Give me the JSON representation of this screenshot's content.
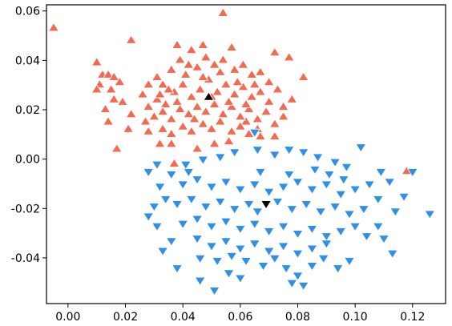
{
  "chart_data": {
    "type": "scatter",
    "title": "",
    "xlabel": "",
    "ylabel": "",
    "xlim": [
      -0.0075,
      0.1315
    ],
    "ylim": [
      -0.0585,
      0.0625
    ],
    "xticks": [
      0.0,
      0.02,
      0.04,
      0.06,
      0.08,
      0.1,
      0.12
    ],
    "xtick_labels": [
      "0.00",
      "0.02",
      "0.04",
      "0.06",
      "0.08",
      "0.10",
      "0.12"
    ],
    "yticks": [
      -0.04,
      -0.02,
      0.0,
      0.02,
      0.04,
      0.06
    ],
    "ytick_labels": [
      "-0.04",
      "-0.02",
      "0.00",
      "0.02",
      "0.04",
      "0.06"
    ],
    "grid": false,
    "legend": "none",
    "series": [
      {
        "marker": "triangle-up",
        "color": "#f26b50",
        "center": [
          0.045,
          0.022
        ],
        "points": [
          [
            -0.005,
            0.053
          ],
          [
            0.022,
            0.048
          ],
          [
            0.054,
            0.059
          ],
          [
            0.038,
            0.046
          ],
          [
            0.043,
            0.044
          ],
          [
            0.047,
            0.046
          ],
          [
            0.057,
            0.045
          ],
          [
            0.072,
            0.043
          ],
          [
            0.077,
            0.041
          ],
          [
            0.082,
            0.033
          ],
          [
            0.01,
            0.039
          ],
          [
            0.012,
            0.034
          ],
          [
            0.014,
            0.034
          ],
          [
            0.011,
            0.03
          ],
          [
            0.01,
            0.028
          ],
          [
            0.016,
            0.033
          ],
          [
            0.018,
            0.031
          ],
          [
            0.015,
            0.028
          ],
          [
            0.016,
            0.024
          ],
          [
            0.019,
            0.023
          ],
          [
            0.013,
            0.02
          ],
          [
            0.014,
            0.015
          ],
          [
            0.017,
            0.004
          ],
          [
            0.022,
            0.018
          ],
          [
            0.021,
            0.012
          ],
          [
            0.028,
            0.011
          ],
          [
            0.032,
            0.006
          ],
          [
            0.036,
            0.006
          ],
          [
            0.045,
            0.004
          ],
          [
            0.051,
            0.006
          ],
          [
            0.067,
            0.009
          ],
          [
            0.072,
            0.009
          ],
          [
            0.037,
            -0.002
          ],
          [
            0.056,
            0.007
          ],
          [
            0.062,
            0.015
          ],
          [
            0.075,
            0.017
          ],
          [
            0.078,
            0.024
          ],
          [
            0.118,
            -0.005
          ],
          [
            0.026,
            0.026
          ],
          [
            0.028,
            0.03
          ],
          [
            0.031,
            0.033
          ],
          [
            0.033,
            0.03
          ],
          [
            0.036,
            0.036
          ],
          [
            0.039,
            0.04
          ],
          [
            0.042,
            0.038
          ],
          [
            0.045,
            0.037
          ],
          [
            0.048,
            0.041
          ],
          [
            0.051,
            0.038
          ],
          [
            0.054,
            0.04
          ],
          [
            0.058,
            0.036
          ],
          [
            0.061,
            0.038
          ],
          [
            0.064,
            0.034
          ],
          [
            0.067,
            0.035
          ],
          [
            0.07,
            0.031
          ],
          [
            0.073,
            0.028
          ],
          [
            0.028,
            0.021
          ],
          [
            0.031,
            0.024
          ],
          [
            0.034,
            0.022
          ],
          [
            0.037,
            0.027
          ],
          [
            0.04,
            0.03
          ],
          [
            0.043,
            0.025
          ],
          [
            0.046,
            0.028
          ],
          [
            0.049,
            0.032
          ],
          [
            0.052,
            0.027
          ],
          [
            0.055,
            0.03
          ],
          [
            0.058,
            0.026
          ],
          [
            0.061,
            0.029
          ],
          [
            0.064,
            0.025
          ],
          [
            0.067,
            0.027
          ],
          [
            0.07,
            0.023
          ],
          [
            0.027,
            0.015
          ],
          [
            0.03,
            0.017
          ],
          [
            0.033,
            0.019
          ],
          [
            0.036,
            0.016
          ],
          [
            0.039,
            0.02
          ],
          [
            0.042,
            0.018
          ],
          [
            0.045,
            0.021
          ],
          [
            0.048,
            0.019
          ],
          [
            0.051,
            0.022
          ],
          [
            0.054,
            0.018
          ],
          [
            0.057,
            0.021
          ],
          [
            0.06,
            0.017
          ],
          [
            0.063,
            0.02
          ],
          [
            0.066,
            0.016
          ],
          [
            0.069,
            0.019
          ],
          [
            0.072,
            0.014
          ],
          [
            0.075,
            0.021
          ],
          [
            0.033,
            0.012
          ],
          [
            0.036,
            0.01
          ],
          [
            0.04,
            0.013
          ],
          [
            0.043,
            0.011
          ],
          [
            0.047,
            0.014
          ],
          [
            0.05,
            0.012
          ],
          [
            0.053,
            0.015
          ],
          [
            0.057,
            0.011
          ],
          [
            0.06,
            0.013
          ],
          [
            0.063,
            0.01
          ],
          [
            0.066,
            0.012
          ],
          [
            0.041,
            0.034
          ],
          [
            0.047,
            0.033
          ],
          [
            0.053,
            0.035
          ],
          [
            0.059,
            0.031
          ],
          [
            0.035,
            0.028
          ],
          [
            0.056,
            0.023
          ],
          [
            0.062,
            0.022
          ],
          [
            0.044,
            0.016
          ],
          [
            0.038,
            0.023
          ],
          [
            0.032,
            0.026
          ],
          [
            0.05,
            0.025
          ],
          [
            0.065,
            0.03
          ]
        ]
      },
      {
        "marker": "triangle-down",
        "color": "#2e90e6",
        "center": [
          0.069,
          -0.018
        ],
        "points": [
          [
            0.102,
            0.005
          ],
          [
            0.126,
            -0.022
          ],
          [
            0.12,
            -0.005
          ],
          [
            0.117,
            -0.015
          ],
          [
            0.112,
            -0.009
          ],
          [
            0.114,
            -0.021
          ],
          [
            0.108,
            -0.027
          ],
          [
            0.104,
            -0.031
          ],
          [
            0.113,
            -0.038
          ],
          [
            0.11,
            -0.032
          ],
          [
            0.098,
            -0.041
          ],
          [
            0.094,
            -0.044
          ],
          [
            0.089,
            -0.04
          ],
          [
            0.085,
            -0.043
          ],
          [
            0.08,
            -0.047
          ],
          [
            0.082,
            -0.051
          ],
          [
            0.078,
            -0.05
          ],
          [
            0.06,
            -0.048
          ],
          [
            0.056,
            -0.046
          ],
          [
            0.046,
            -0.049
          ],
          [
            0.051,
            -0.053
          ],
          [
            0.038,
            -0.044
          ],
          [
            0.033,
            -0.037
          ],
          [
            0.036,
            -0.033
          ],
          [
            0.031,
            -0.027
          ],
          [
            0.028,
            -0.023
          ],
          [
            0.03,
            -0.019
          ],
          [
            0.034,
            -0.016
          ],
          [
            0.032,
            -0.011
          ],
          [
            0.028,
            -0.005
          ],
          [
            0.031,
            -0.002
          ],
          [
            0.036,
            -0.006
          ],
          [
            0.041,
            -0.002
          ],
          [
            0.047,
            -0.0
          ],
          [
            0.053,
            0.001
          ],
          [
            0.058,
            0.003
          ],
          [
            0.066,
            0.004
          ],
          [
            0.072,
            0.002
          ],
          [
            0.077,
            0.004
          ],
          [
            0.082,
            0.003
          ],
          [
            0.087,
            0.001
          ],
          [
            0.093,
            -0.001
          ],
          [
            0.097,
            -0.003
          ],
          [
            0.091,
            -0.006
          ],
          [
            0.065,
            0.011
          ],
          [
            0.04,
            -0.01
          ],
          [
            0.045,
            -0.008
          ],
          [
            0.05,
            -0.011
          ],
          [
            0.055,
            -0.009
          ],
          [
            0.06,
            -0.012
          ],
          [
            0.065,
            -0.01
          ],
          [
            0.07,
            -0.013
          ],
          [
            0.075,
            -0.011
          ],
          [
            0.08,
            -0.009
          ],
          [
            0.085,
            -0.012
          ],
          [
            0.09,
            -0.01
          ],
          [
            0.095,
            -0.014
          ],
          [
            0.1,
            -0.012
          ],
          [
            0.105,
            -0.01
          ],
          [
            0.038,
            -0.018
          ],
          [
            0.043,
            -0.016
          ],
          [
            0.048,
            -0.019
          ],
          [
            0.053,
            -0.017
          ],
          [
            0.058,
            -0.02
          ],
          [
            0.063,
            -0.018
          ],
          [
            0.073,
            -0.017
          ],
          [
            0.078,
            -0.02
          ],
          [
            0.083,
            -0.018
          ],
          [
            0.088,
            -0.021
          ],
          [
            0.093,
            -0.019
          ],
          [
            0.098,
            -0.022
          ],
          [
            0.103,
            -0.02
          ],
          [
            0.04,
            -0.026
          ],
          [
            0.045,
            -0.024
          ],
          [
            0.05,
            -0.027
          ],
          [
            0.055,
            -0.025
          ],
          [
            0.06,
            -0.028
          ],
          [
            0.065,
            -0.026
          ],
          [
            0.07,
            -0.029
          ],
          [
            0.075,
            -0.027
          ],
          [
            0.08,
            -0.03
          ],
          [
            0.085,
            -0.028
          ],
          [
            0.09,
            -0.031
          ],
          [
            0.095,
            -0.029
          ],
          [
            0.1,
            -0.027
          ],
          [
            0.045,
            -0.032
          ],
          [
            0.05,
            -0.035
          ],
          [
            0.055,
            -0.033
          ],
          [
            0.06,
            -0.036
          ],
          [
            0.065,
            -0.034
          ],
          [
            0.07,
            -0.037
          ],
          [
            0.075,
            -0.035
          ],
          [
            0.08,
            -0.038
          ],
          [
            0.085,
            -0.036
          ],
          [
            0.09,
            -0.034
          ],
          [
            0.062,
            -0.041
          ],
          [
            0.068,
            -0.043
          ],
          [
            0.072,
            -0.04
          ],
          [
            0.057,
            -0.039
          ],
          [
            0.052,
            -0.041
          ],
          [
            0.067,
            -0.005
          ],
          [
            0.077,
            -0.006
          ],
          [
            0.086,
            -0.004
          ],
          [
            0.096,
            -0.008
          ],
          [
            0.108,
            -0.016
          ],
          [
            0.042,
            -0.005
          ],
          [
            0.109,
            -0.005
          ],
          [
            0.046,
            -0.04
          ],
          [
            0.076,
            -0.044
          ],
          [
            0.066,
            -0.021
          ]
        ]
      },
      {
        "marker": "triangle-up",
        "color": "#000000",
        "points": [
          [
            0.049,
            0.025
          ]
        ]
      },
      {
        "marker": "triangle-down",
        "color": "#000000",
        "points": [
          [
            0.069,
            -0.018
          ]
        ]
      }
    ]
  }
}
